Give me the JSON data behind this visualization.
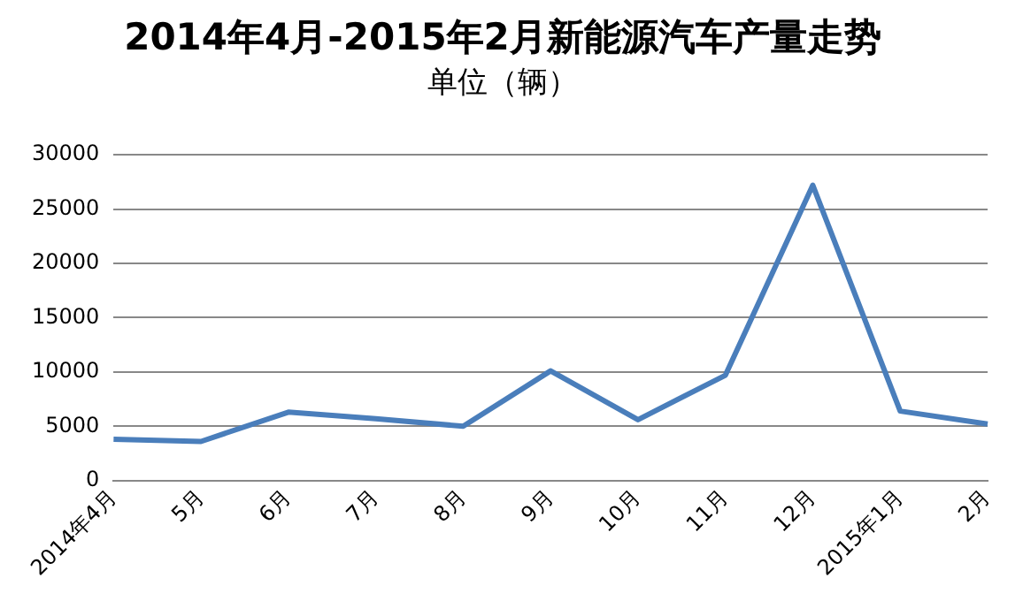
{
  "chart_data": {
    "type": "line",
    "title": "2014年4月-2015年2月新能源汽车产量走势",
    "subtitle": "单位（辆）",
    "categories": [
      "2014年4月",
      "5月",
      "6月",
      "7月",
      "8月",
      "9月",
      "10月",
      "11月",
      "12月",
      "2015年1月",
      "2月"
    ],
    "series": [
      {
        "color": "#4a7ebb",
        "values": [
          3800,
          3600,
          6300,
          5700,
          5000,
          10100,
          5600,
          9700,
          27200,
          6400,
          5200
        ]
      }
    ],
    "ylim": [
      0,
      30000
    ],
    "yticks": [
      0,
      5000,
      10000,
      15000,
      20000,
      25000,
      30000
    ],
    "grid": "y",
    "legend": false,
    "marker": "none",
    "line_style": "solid"
  }
}
